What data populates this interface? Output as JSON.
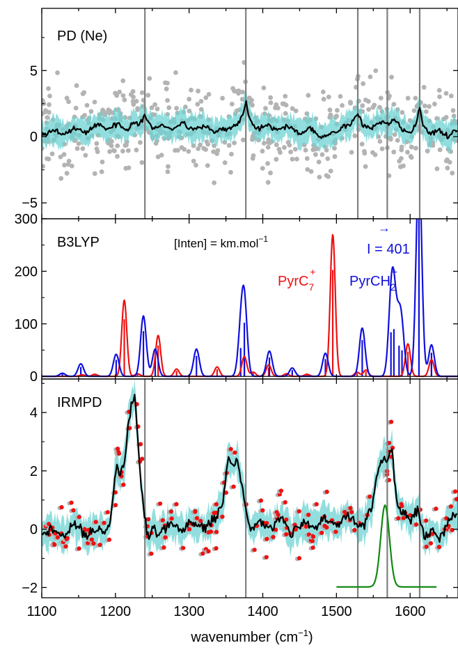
{
  "chart_data": {
    "type": "line",
    "x_range": [
      1100,
      1665
    ],
    "x_ticks": [
      1100,
      1200,
      1300,
      1400,
      1500,
      1600
    ],
    "x_minor_step": 50,
    "xlabel": "wavenumber",
    "xlabel_unit": "(cm",
    "xlabel_unit_exp": "−1",
    "xlabel_unit_close": ")",
    "reference_lines": [
      1240,
      1377,
      1529,
      1569,
      1613
    ],
    "colors": {
      "data_points": "#b3b3b3",
      "band": "#6dd3d3",
      "average": "#000000",
      "pyrc7": "#ee1111",
      "pyrch2": "#1010dd",
      "laser": "#118811",
      "irmpd_points": "#ee1111",
      "ref_line": "#808080"
    },
    "panels": [
      {
        "id": "pd",
        "label": "PD (Ne)",
        "ylim": [
          -6.2,
          9.7
        ],
        "yticks": [
          -5,
          0,
          5
        ],
        "ytick_labels": [
          "−5",
          "0",
          "5"
        ],
        "minor_step": 2.5,
        "mean_points": [
          [
            1100,
            0.1
          ],
          [
            1115,
            0.5
          ],
          [
            1130,
            0.2
          ],
          [
            1145,
            0.7
          ],
          [
            1160,
            0.3
          ],
          [
            1175,
            0.9
          ],
          [
            1190,
            0.6
          ],
          [
            1205,
            1.0
          ],
          [
            1215,
            0.4
          ],
          [
            1225,
            1.1
          ],
          [
            1232,
            0.8
          ],
          [
            1240,
            1.6
          ],
          [
            1250,
            0.6
          ],
          [
            1262,
            0.9
          ],
          [
            1275,
            0.5
          ],
          [
            1290,
            1.0
          ],
          [
            1305,
            0.6
          ],
          [
            1320,
            0.8
          ],
          [
            1335,
            0.4
          ],
          [
            1350,
            0.6
          ],
          [
            1365,
            0.9
          ],
          [
            1371,
            1.4
          ],
          [
            1377,
            2.6
          ],
          [
            1383,
            1.2
          ],
          [
            1392,
            0.6
          ],
          [
            1405,
            0.9
          ],
          [
            1420,
            0.5
          ],
          [
            1435,
            0.8
          ],
          [
            1450,
            0.3
          ],
          [
            1465,
            0.6
          ],
          [
            1478,
            -0.1
          ],
          [
            1490,
            0.2
          ],
          [
            1500,
            0.4
          ],
          [
            1510,
            0.8
          ],
          [
            1518,
            0.9
          ],
          [
            1524,
            1.3
          ],
          [
            1529,
            1.8
          ],
          [
            1535,
            1.0
          ],
          [
            1545,
            0.6
          ],
          [
            1555,
            1.0
          ],
          [
            1563,
            1.2
          ],
          [
            1569,
            1.0
          ],
          [
            1578,
            1.3
          ],
          [
            1590,
            0.5
          ],
          [
            1600,
            0.3
          ],
          [
            1608,
            0.9
          ],
          [
            1613,
            2.2
          ],
          [
            1618,
            0.8
          ],
          [
            1628,
            0.2
          ],
          [
            1640,
            0.5
          ],
          [
            1652,
            0.0
          ],
          [
            1665,
            0.6
          ]
        ],
        "scatter_seed": 12,
        "scatter_per_10cm": 10,
        "scatter_spread": 1.6,
        "band_halfwidth": 0.9
      },
      {
        "id": "b3lyp",
        "label": "B3LYP",
        "units_label": "[Inten] = km.mol",
        "units_exp": "−1",
        "ylim": [
          -5,
          300
        ],
        "yticks": [
          0,
          100,
          200,
          300
        ],
        "ytick_labels": [
          "0",
          "100",
          "200",
          "300"
        ],
        "minor_step": 50,
        "series": [
          {
            "name": "PyrC",
            "name_sub": "7",
            "name_sup": "+",
            "color_key": "pyrc7",
            "fwhm": 8,
            "sticks": [
              [
                1155,
                3
              ],
              [
                1172,
                4
              ],
              [
                1212,
                145
              ],
              [
                1230,
                5
              ],
              [
                1258,
                78
              ],
              [
                1283,
                14
              ],
              [
                1338,
                18
              ],
              [
                1375,
                38
              ],
              [
                1387,
                8
              ],
              [
                1408,
                22
              ],
              [
                1432,
                5
              ],
              [
                1460,
                4
              ],
              [
                1495,
                270
              ],
              [
                1528,
                8
              ],
              [
                1540,
                12
              ],
              [
                1597,
                62
              ],
              [
                1629,
                32
              ]
            ]
          },
          {
            "name": "PyrCH",
            "name_sub": "2",
            "name_sup": "+",
            "color_key": "pyrch2",
            "fwhm": 9,
            "sticks": [
              [
                1128,
                6
              ],
              [
                1153,
                24
              ],
              [
                1201,
                42
              ],
              [
                1238,
                115
              ],
              [
                1254,
                52
              ],
              [
                1310,
                52
              ],
              [
                1370,
                72
              ],
              [
                1375,
                136
              ],
              [
                1409,
                48
              ],
              [
                1440,
                16
              ],
              [
                1485,
                44
              ],
              [
                1535,
                92
              ],
              [
                1574,
                112
              ],
              [
                1578,
                120
              ],
              [
                1585,
                78
              ],
              [
                1589,
                66
              ],
              [
                1612,
                401
              ],
              [
                1629,
                60
              ]
            ]
          }
        ],
        "overflow_label": "I = 401",
        "overflow_arrow": "→"
      },
      {
        "id": "irmpd",
        "label": "IRMPD",
        "ylim": [
          -2.35,
          5.15
        ],
        "yticks": [
          -2,
          0,
          2,
          4
        ],
        "ytick_labels": [
          "−2",
          "0",
          "2",
          "4"
        ],
        "minor_step": 1,
        "mean_points": [
          [
            1100,
            -0.1
          ],
          [
            1115,
            0.0
          ],
          [
            1130,
            -0.3
          ],
          [
            1145,
            0.2
          ],
          [
            1160,
            -0.2
          ],
          [
            1175,
            0.0
          ],
          [
            1185,
            -0.1
          ],
          [
            1192,
            0.2
          ],
          [
            1197,
            1.2
          ],
          [
            1202,
            2.3
          ],
          [
            1207,
            1.8
          ],
          [
            1212,
            2.2
          ],
          [
            1217,
            3.6
          ],
          [
            1222,
            4.3
          ],
          [
            1226,
            4.6
          ],
          [
            1230,
            3.2
          ],
          [
            1235,
            1.5
          ],
          [
            1240,
            0.4
          ],
          [
            1245,
            -0.4
          ],
          [
            1250,
            0.1
          ],
          [
            1260,
            -0.2
          ],
          [
            1275,
            0.2
          ],
          [
            1290,
            -0.1
          ],
          [
            1305,
            0.3
          ],
          [
            1320,
            0.0
          ],
          [
            1335,
            0.4
          ],
          [
            1345,
            0.8
          ],
          [
            1350,
            1.8
          ],
          [
            1354,
            2.4
          ],
          [
            1358,
            2.2
          ],
          [
            1363,
            2.3
          ],
          [
            1368,
            2.0
          ],
          [
            1373,
            1.3
          ],
          [
            1378,
            0.5
          ],
          [
            1383,
            -0.1
          ],
          [
            1395,
            0.3
          ],
          [
            1410,
            0.0
          ],
          [
            1425,
            0.4
          ],
          [
            1440,
            -0.2
          ],
          [
            1455,
            0.3
          ],
          [
            1470,
            0.0
          ],
          [
            1485,
            0.4
          ],
          [
            1500,
            0.1
          ],
          [
            1515,
            0.5
          ],
          [
            1530,
            0.2
          ],
          [
            1540,
            0.2
          ],
          [
            1548,
            0.8
          ],
          [
            1553,
            1.5
          ],
          [
            1558,
            2.2
          ],
          [
            1563,
            2.5
          ],
          [
            1568,
            2.3
          ],
          [
            1572,
            2.7
          ],
          [
            1575,
            3.0
          ],
          [
            1578,
            2.0
          ],
          [
            1582,
            0.9
          ],
          [
            1590,
            0.5
          ],
          [
            1600,
            0.3
          ],
          [
            1610,
            0.6
          ],
          [
            1620,
            -0.3
          ],
          [
            1630,
            0.0
          ],
          [
            1640,
            -0.4
          ],
          [
            1650,
            0.2
          ],
          [
            1665,
            0.6
          ]
        ],
        "scatter_seed": 7,
        "scatter_per_10cm": 3,
        "scatter_spread": 0.45,
        "band_halfwidth": 0.5,
        "laser_profile": {
          "center": 1566,
          "fwhm": 14,
          "amplitude": 2.8,
          "baseline": -1.98,
          "x_start": 1500,
          "x_end": 1636
        }
      }
    ]
  }
}
